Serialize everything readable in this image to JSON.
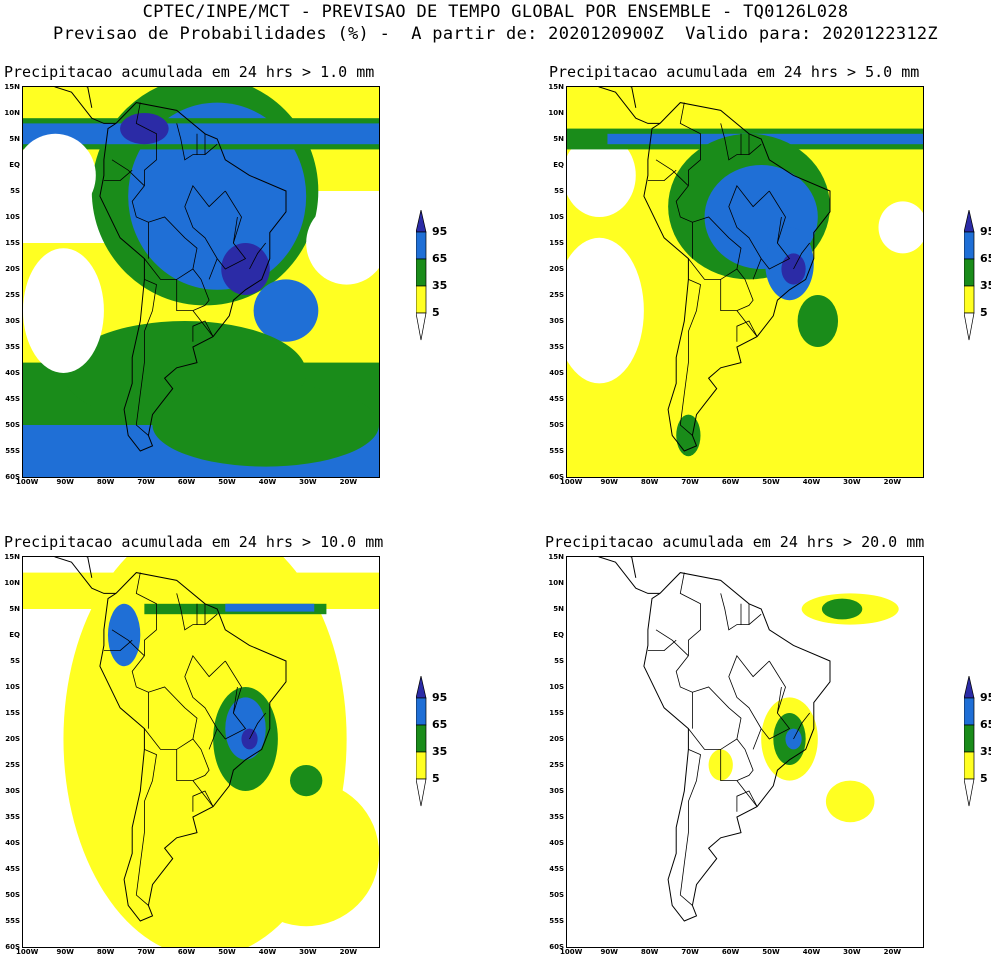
{
  "header": {
    "line1": "CPTEC/INPE/MCT - PREVISAO DE TEMPO GLOBAL POR ENSEMBLE - TQ0126L028",
    "line2": "Previsao de Probabilidades (%) -  A partir de: 2020120900Z  Valido para: 2020122312Z"
  },
  "panels": [
    {
      "title": "Precipitacao acumulada em 24 hrs > 1.0 mm"
    },
    {
      "title": "Precipitacao acumulada em 24 hrs > 5.0 mm"
    },
    {
      "title": "Precipitacao acumulada em 24 hrs > 10.0 mm"
    },
    {
      "title": "Precipitacao acumulada em 24 hrs > 20.0 mm"
    }
  ],
  "lat_labels": [
    "15N",
    "10N",
    "5N",
    "EQ",
    "5S",
    "10S",
    "15S",
    "20S",
    "25S",
    "30S",
    "35S",
    "40S",
    "45S",
    "50S",
    "55S",
    "60S"
  ],
  "lon_labels": [
    "100W",
    "90W",
    "80W",
    "70W",
    "60W",
    "50W",
    "40W",
    "30W",
    "20W"
  ],
  "colorbar": {
    "labels": [
      "95",
      "65",
      "35",
      "5"
    ],
    "colors": {
      "c95": "#2b2ba6",
      "c65": "#1f6fd6",
      "c35": "#1a8c1a",
      "c5": "#ffff22",
      "c0": "#ffffff"
    }
  }
}
